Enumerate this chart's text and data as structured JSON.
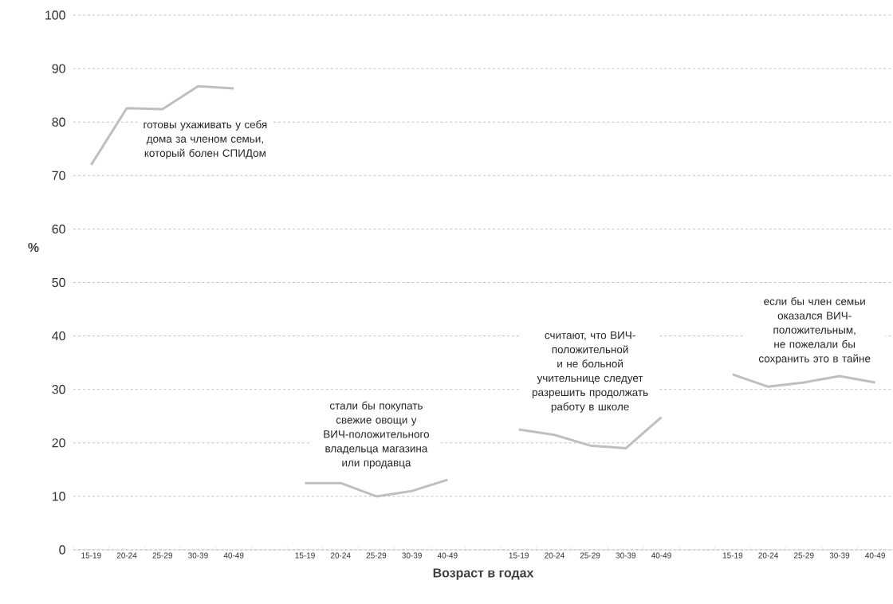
{
  "chart_data": {
    "type": "line",
    "xlabel": "Возраст в годах",
    "ylabel": "%",
    "ylim": [
      0,
      100
    ],
    "yticks": [
      0,
      10,
      20,
      30,
      40,
      50,
      60,
      70,
      80,
      90,
      100
    ],
    "grid": "y",
    "line_style": "solid",
    "categories": [
      "15-19",
      "20-24",
      "25-29",
      "30-39",
      "40-49",
      null,
      "15-19",
      "20-24",
      "25-29",
      "30-39",
      "40-49",
      null,
      "15-19",
      "20-24",
      "25-29",
      "30-39",
      "40-49",
      null,
      "15-19",
      "20-24",
      "25-29",
      "30-39",
      "40-49"
    ],
    "series": [
      {
        "name": "готовы ухаживать у себя дома за членом семьи, который болен СПИДом",
        "color": "#bfbfbf",
        "values": [
          72,
          82.6,
          82.4,
          86.7,
          86.3,
          null,
          null,
          null,
          null,
          null,
          null,
          null,
          null,
          null,
          null,
          null,
          null,
          null,
          null,
          null,
          null,
          null,
          null
        ]
      },
      {
        "name": "стали бы покупать свежие овощи у ВИЧ-положительного владельца магазина или продавца",
        "color": "#bfbfbf",
        "values": [
          null,
          null,
          null,
          null,
          null,
          null,
          12.5,
          12.5,
          10,
          11,
          13.1,
          null,
          null,
          null,
          null,
          null,
          null,
          null,
          null,
          null,
          null,
          null,
          null
        ]
      },
      {
        "name": "считают, что ВИЧ-положительной и не больной учительнице следует разрешить продолжать работу в школе",
        "color": "#bfbfbf",
        "values": [
          null,
          null,
          null,
          null,
          null,
          null,
          null,
          null,
          null,
          null,
          null,
          null,
          22.5,
          21.5,
          19.5,
          19,
          24.8,
          null,
          null,
          null,
          null,
          null,
          null
        ]
      },
      {
        "name": "если бы член семьи оказался ВИЧ-положительным, не пожелали бы сохранить это в тайне",
        "color": "#bfbfbf",
        "values": [
          null,
          null,
          null,
          null,
          null,
          null,
          null,
          null,
          null,
          null,
          null,
          null,
          null,
          null,
          null,
          null,
          null,
          null,
          32.8,
          30.5,
          31.3,
          32.5,
          31.3
        ]
      }
    ]
  }
}
